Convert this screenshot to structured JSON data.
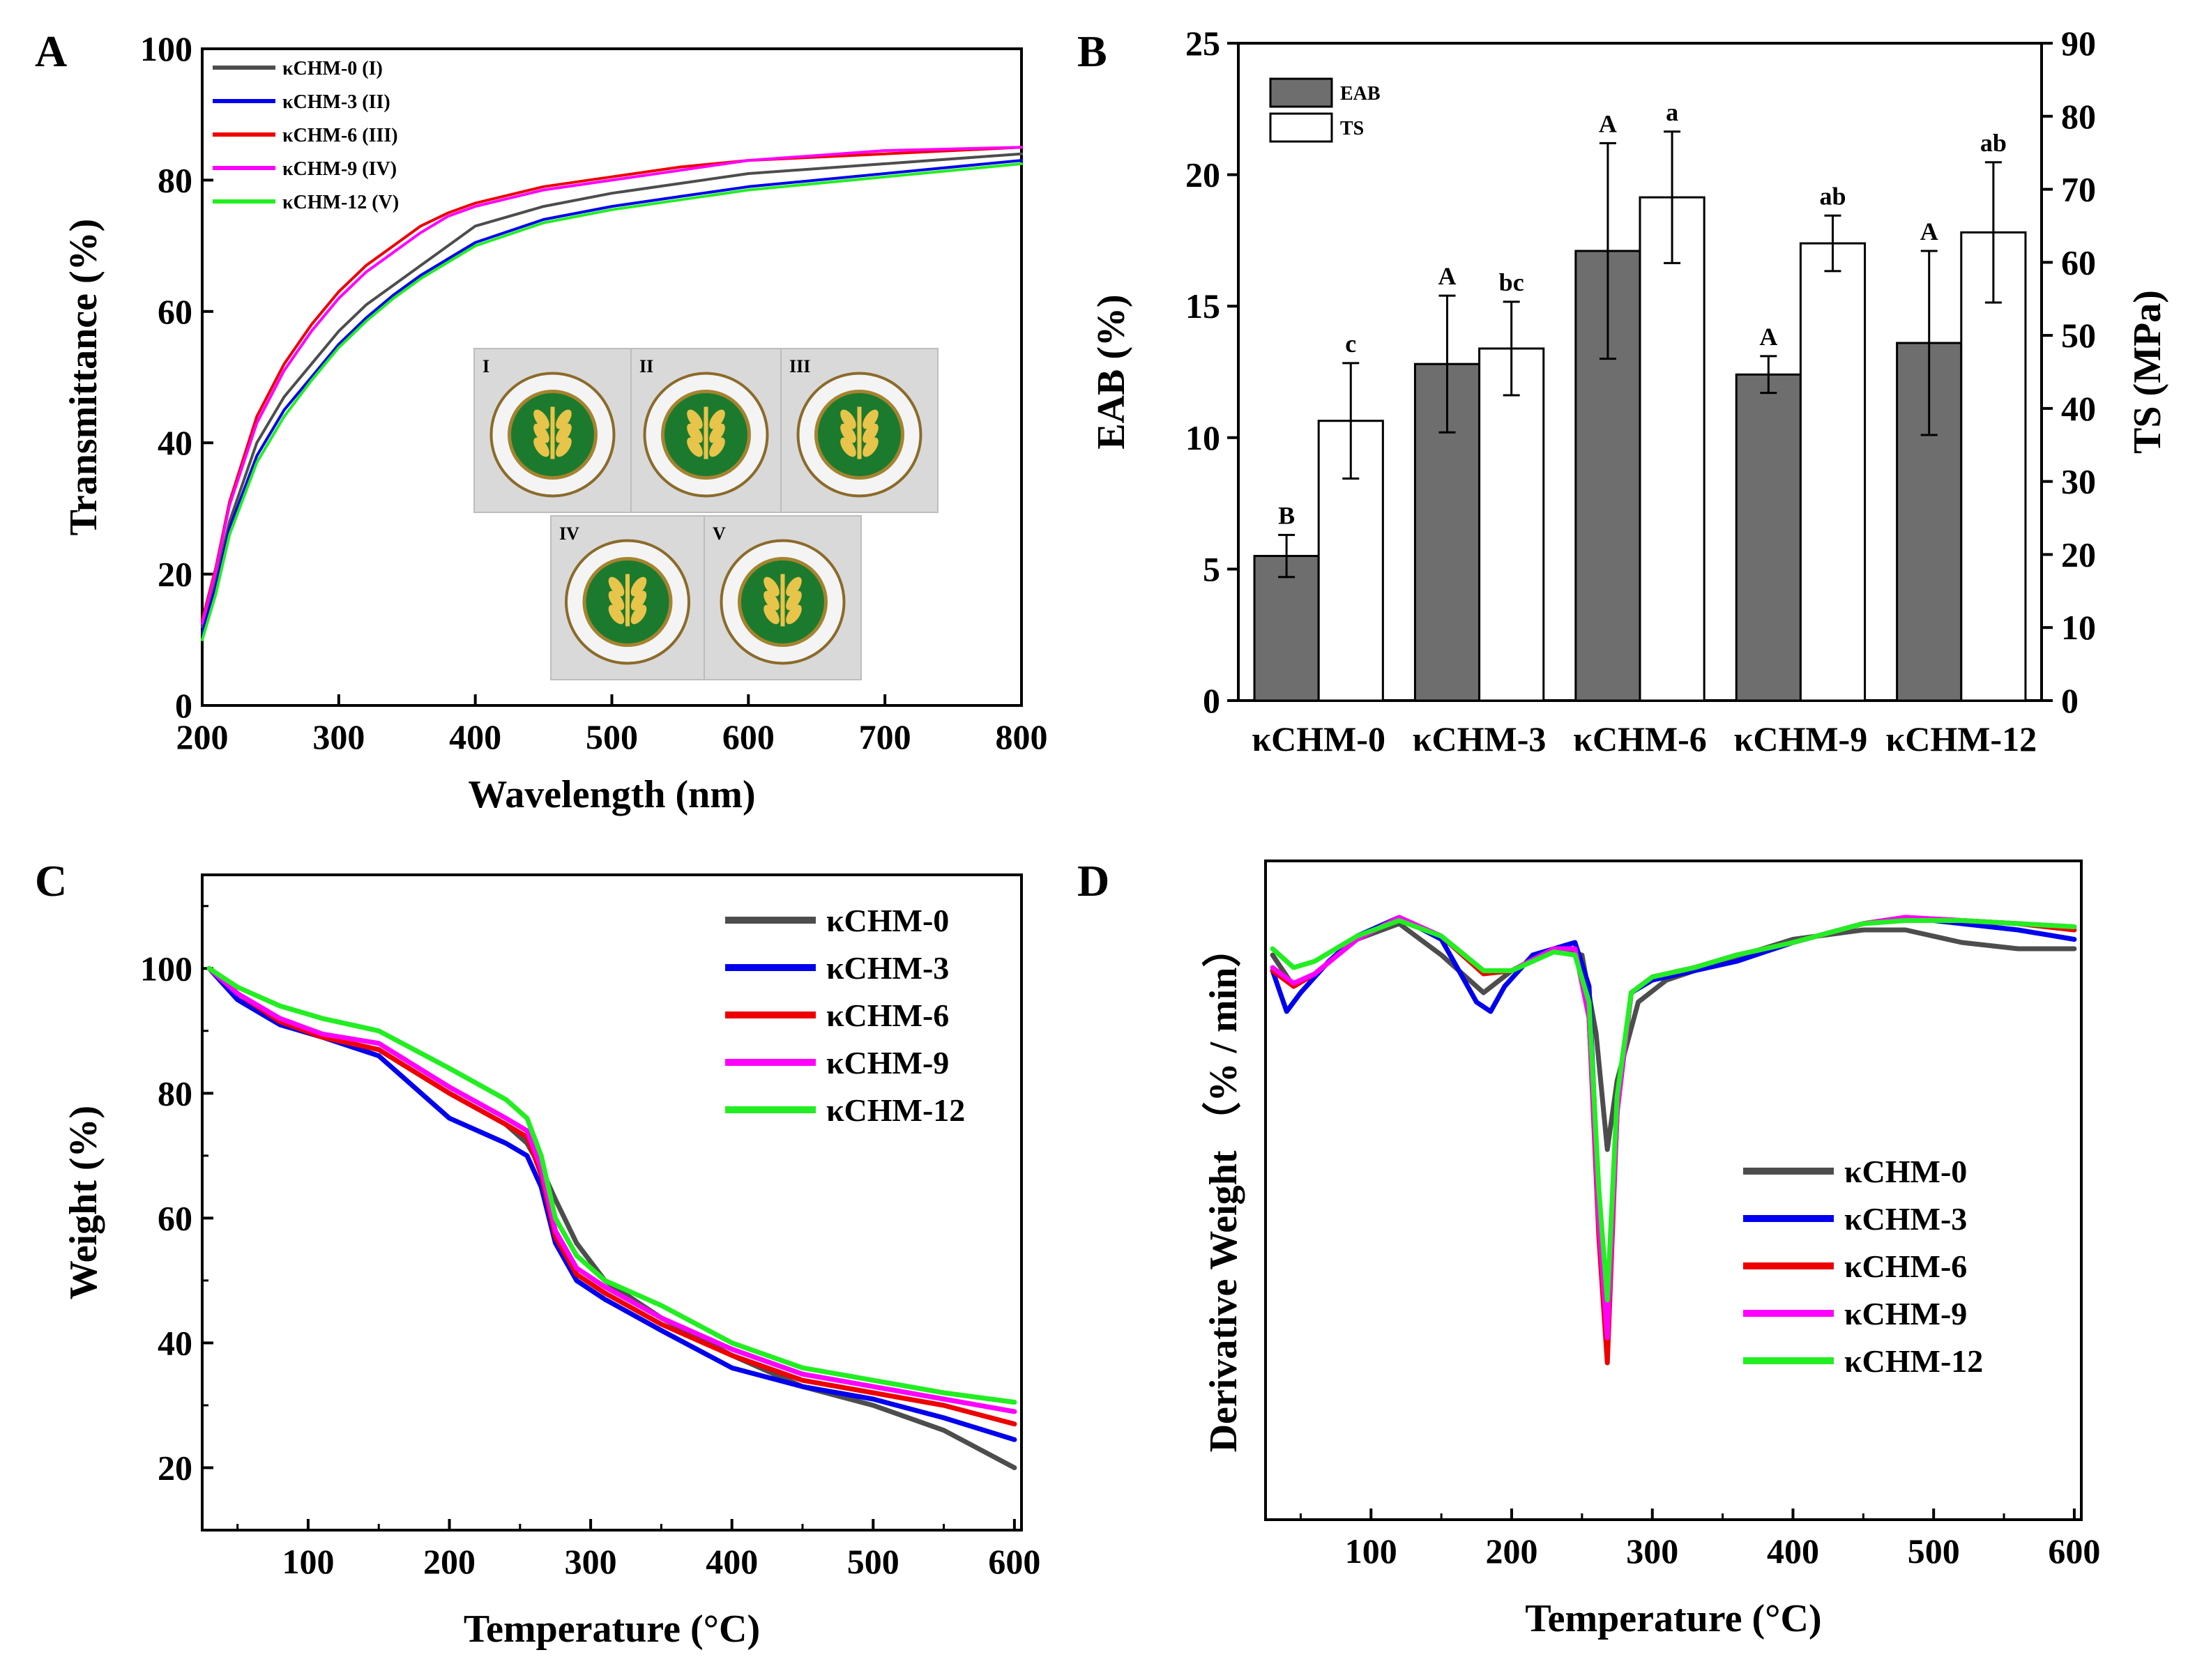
{
  "colors": {
    "gray": "#4d4d4d",
    "blue": "#0000ee",
    "red": "#ee0000",
    "magenta": "#ff00ff",
    "green": "#22ee22",
    "bar_dark": "#6e6e6e"
  },
  "chart_data": [
    {
      "panel": "A",
      "type": "line",
      "xlabel": "Wavelength (nm)",
      "ylabel": "Transmittance (%)",
      "xlim": [
        200,
        800
      ],
      "ylim": [
        0,
        100
      ],
      "xticks": [
        200,
        300,
        400,
        500,
        600,
        700,
        800
      ],
      "yticks": [
        0,
        20,
        40,
        60,
        80,
        100
      ],
      "legend": "top-left",
      "series": [
        {
          "name": "κCHM-0 (I)",
          "color": "gray",
          "x": [
            200,
            210,
            220,
            240,
            260,
            280,
            300,
            320,
            340,
            360,
            380,
            400,
            450,
            500,
            550,
            600,
            700,
            800
          ],
          "y": [
            12,
            19,
            28,
            40,
            47,
            52,
            57,
            61,
            64,
            67,
            70,
            73,
            76,
            78,
            79.5,
            81,
            82.5,
            84
          ]
        },
        {
          "name": "κCHM-3 (II)",
          "color": "blue",
          "x": [
            200,
            210,
            220,
            240,
            260,
            280,
            300,
            320,
            340,
            360,
            380,
            400,
            450,
            500,
            550,
            600,
            700,
            800
          ],
          "y": [
            11,
            18,
            27,
            38,
            45,
            50,
            55,
            59,
            62.5,
            65.5,
            68,
            70.5,
            74,
            76,
            77.5,
            79,
            81,
            83
          ]
        },
        {
          "name": "κCHM-6 (III)",
          "color": "red",
          "x": [
            200,
            210,
            220,
            240,
            260,
            280,
            300,
            320,
            340,
            360,
            380,
            400,
            450,
            500,
            550,
            600,
            700,
            800
          ],
          "y": [
            13,
            21,
            31,
            44,
            52,
            58,
            63,
            67,
            70,
            73,
            75,
            76.5,
            79,
            80.5,
            82,
            83,
            84,
            85
          ]
        },
        {
          "name": "κCHM-9 (IV)",
          "color": "magenta",
          "x": [
            200,
            210,
            220,
            240,
            260,
            280,
            300,
            320,
            340,
            360,
            380,
            400,
            450,
            500,
            550,
            600,
            700,
            800
          ],
          "y": [
            12.5,
            20.5,
            30.5,
            43,
            51,
            57,
            62,
            66,
            69,
            72,
            74.5,
            76,
            78.5,
            80,
            81.5,
            83,
            84.5,
            85
          ]
        },
        {
          "name": "κCHM-12 (V)",
          "color": "green",
          "x": [
            200,
            210,
            220,
            240,
            260,
            280,
            300,
            320,
            340,
            360,
            380,
            400,
            450,
            500,
            550,
            600,
            700,
            800
          ],
          "y": [
            10,
            17,
            26,
            37,
            44,
            49.5,
            54.5,
            58.5,
            62,
            65,
            67.5,
            70,
            73.5,
            75.5,
            77,
            78.5,
            80.5,
            82.5
          ]
        }
      ],
      "inset_photos": [
        "I",
        "II",
        "III",
        "IV",
        "V"
      ]
    },
    {
      "panel": "B",
      "type": "bar",
      "categories": [
        "κCHM-0",
        "κCHM-3",
        "κCHM-6",
        "κCHM-9",
        "κCHM-12"
      ],
      "ylabel": "EAB (%)",
      "y2label": "TS (MPa)",
      "ylim": [
        0,
        25
      ],
      "y2lim": [
        0,
        90
      ],
      "yticks": [
        0,
        5,
        10,
        15,
        20,
        25
      ],
      "y2ticks": [
        0,
        10,
        20,
        30,
        40,
        50,
        60,
        70,
        80,
        90
      ],
      "legend": "top-left",
      "series": [
        {
          "name": "EAB",
          "axis": "left",
          "fill": "bar_dark",
          "values": [
            5.5,
            12.8,
            17.1,
            12.4,
            13.6
          ],
          "errors": [
            0.8,
            2.6,
            4.1,
            0.7,
            3.5
          ],
          "letters": [
            "B",
            "A",
            "A",
            "A",
            "A"
          ]
        },
        {
          "name": "TS",
          "axis": "right",
          "fill": "white",
          "values": [
            38.3,
            48.2,
            68.9,
            62.6,
            64.1
          ],
          "errors": [
            7.9,
            6.4,
            9.0,
            3.8,
            9.6
          ],
          "letters": [
            "c",
            "bc",
            "a",
            "ab",
            "ab"
          ]
        }
      ]
    },
    {
      "panel": "C",
      "type": "line",
      "xlabel": "Temperature (°C)",
      "ylabel": "Weight (%)",
      "xlim": [
        25,
        605
      ],
      "ylim": [
        10,
        115
      ],
      "xticks": [
        100,
        200,
        300,
        400,
        500,
        600
      ],
      "yticks": [
        20,
        40,
        60,
        80,
        100
      ],
      "legend": "top-right",
      "series": [
        {
          "name": "κCHM-0",
          "color": "gray",
          "x": [
            30,
            50,
            80,
            110,
            150,
            200,
            240,
            255,
            265,
            275,
            290,
            310,
            350,
            400,
            450,
            500,
            550,
            600
          ],
          "y": [
            100,
            95,
            91,
            89,
            87,
            80,
            75,
            72,
            68,
            63,
            56,
            50,
            44,
            38,
            33,
            30,
            26,
            20
          ]
        },
        {
          "name": "κCHM-3",
          "color": "blue",
          "x": [
            30,
            50,
            80,
            110,
            150,
            200,
            240,
            255,
            265,
            275,
            290,
            310,
            350,
            400,
            450,
            500,
            550,
            600
          ],
          "y": [
            100,
            95,
            91,
            89,
            86,
            76,
            72,
            70,
            65,
            56,
            50,
            47,
            42,
            36,
            33,
            31,
            28,
            24.5
          ]
        },
        {
          "name": "κCHM-6",
          "color": "red",
          "x": [
            30,
            50,
            80,
            110,
            150,
            200,
            240,
            255,
            265,
            275,
            290,
            310,
            350,
            400,
            450,
            500,
            550,
            600
          ],
          "y": [
            100,
            96,
            91.5,
            89,
            87,
            80,
            75,
            73,
            67,
            57,
            51,
            48,
            43,
            38,
            34,
            32,
            30,
            27
          ]
        },
        {
          "name": "κCHM-9",
          "color": "magenta",
          "x": [
            30,
            50,
            80,
            110,
            150,
            200,
            240,
            255,
            265,
            275,
            290,
            310,
            350,
            400,
            450,
            500,
            550,
            600
          ],
          "y": [
            100,
            96,
            92,
            89.5,
            88,
            81,
            76,
            74,
            68,
            58,
            52,
            49,
            44,
            39,
            35,
            33,
            31,
            29
          ]
        },
        {
          "name": "κCHM-12",
          "color": "green",
          "x": [
            30,
            50,
            80,
            110,
            150,
            200,
            240,
            255,
            265,
            275,
            290,
            310,
            350,
            400,
            450,
            500,
            550,
            600
          ],
          "y": [
            100,
            97,
            94,
            92,
            90,
            84,
            79,
            76,
            70,
            60,
            54,
            50,
            46,
            40,
            36,
            34,
            32,
            30.5
          ]
        }
      ]
    },
    {
      "panel": "D",
      "type": "line",
      "xlabel": "Temperature (°C)",
      "ylabel": "Derivative Weight （% / min）",
      "xlim": [
        25,
        605
      ],
      "ylim": [
        -1.8,
        0.3
      ],
      "xticks": [
        100,
        200,
        300,
        400,
        500,
        600
      ],
      "yticks": [],
      "legend": "bottom-right",
      "series": [
        {
          "name": "κCHM-0",
          "color": "gray",
          "x": [
            30,
            45,
            60,
            90,
            120,
            150,
            180,
            200,
            230,
            250,
            260,
            268,
            275,
            290,
            310,
            350,
            400,
            450,
            480,
            520,
            560,
            600
          ],
          "y": [
            0.0,
            -0.1,
            -0.06,
            0.05,
            0.1,
            0.0,
            -0.12,
            -0.05,
            0.02,
            0.0,
            -0.25,
            -0.62,
            -0.4,
            -0.15,
            -0.08,
            -0.02,
            0.05,
            0.08,
            0.08,
            0.04,
            0.02,
            0.02
          ]
        },
        {
          "name": "κCHM-3",
          "color": "blue",
          "x": [
            30,
            40,
            50,
            70,
            90,
            120,
            150,
            175,
            185,
            195,
            215,
            245,
            255,
            262,
            268,
            275,
            285,
            300,
            330,
            360,
            400,
            450,
            480,
            520,
            560,
            600
          ],
          "y": [
            -0.05,
            -0.18,
            -0.12,
            -0.02,
            0.06,
            0.12,
            0.05,
            -0.15,
            -0.18,
            -0.1,
            0.0,
            0.04,
            -0.1,
            -0.8,
            -1.2,
            -0.5,
            -0.12,
            -0.08,
            -0.05,
            -0.02,
            0.04,
            0.1,
            0.12,
            0.1,
            0.08,
            0.05
          ]
        },
        {
          "name": "κCHM-6",
          "color": "red",
          "x": [
            30,
            45,
            60,
            90,
            120,
            150,
            180,
            200,
            230,
            245,
            255,
            262,
            268,
            275,
            285,
            300,
            330,
            360,
            400,
            450,
            480,
            520,
            560,
            600
          ],
          "y": [
            -0.05,
            -0.1,
            -0.06,
            0.05,
            0.12,
            0.06,
            -0.06,
            -0.05,
            0.02,
            0.02,
            -0.2,
            -0.9,
            -1.3,
            -0.5,
            -0.12,
            -0.07,
            -0.04,
            0.0,
            0.04,
            0.1,
            0.12,
            0.11,
            0.1,
            0.08
          ]
        },
        {
          "name": "κCHM-9",
          "color": "magenta",
          "x": [
            30,
            45,
            60,
            90,
            120,
            150,
            180,
            200,
            230,
            245,
            255,
            262,
            268,
            275,
            285,
            300,
            330,
            360,
            400,
            450,
            480,
            520,
            560,
            600
          ],
          "y": [
            -0.04,
            -0.09,
            -0.06,
            0.05,
            0.12,
            0.06,
            -0.05,
            -0.05,
            0.02,
            0.02,
            -0.2,
            -0.85,
            -1.22,
            -0.5,
            -0.12,
            -0.07,
            -0.04,
            0.0,
            0.04,
            0.1,
            0.12,
            0.11,
            0.1,
            0.09
          ]
        },
        {
          "name": "κCHM-12",
          "color": "green",
          "x": [
            30,
            45,
            60,
            90,
            120,
            150,
            180,
            200,
            230,
            245,
            255,
            262,
            268,
            275,
            285,
            300,
            330,
            360,
            400,
            450,
            480,
            520,
            560,
            600
          ],
          "y": [
            0.02,
            -0.04,
            -0.02,
            0.06,
            0.11,
            0.06,
            -0.05,
            -0.05,
            0.01,
            0.0,
            -0.15,
            -0.75,
            -1.1,
            -0.45,
            -0.12,
            -0.07,
            -0.04,
            0.0,
            0.04,
            0.1,
            0.11,
            0.11,
            0.1,
            0.09
          ]
        }
      ]
    }
  ]
}
